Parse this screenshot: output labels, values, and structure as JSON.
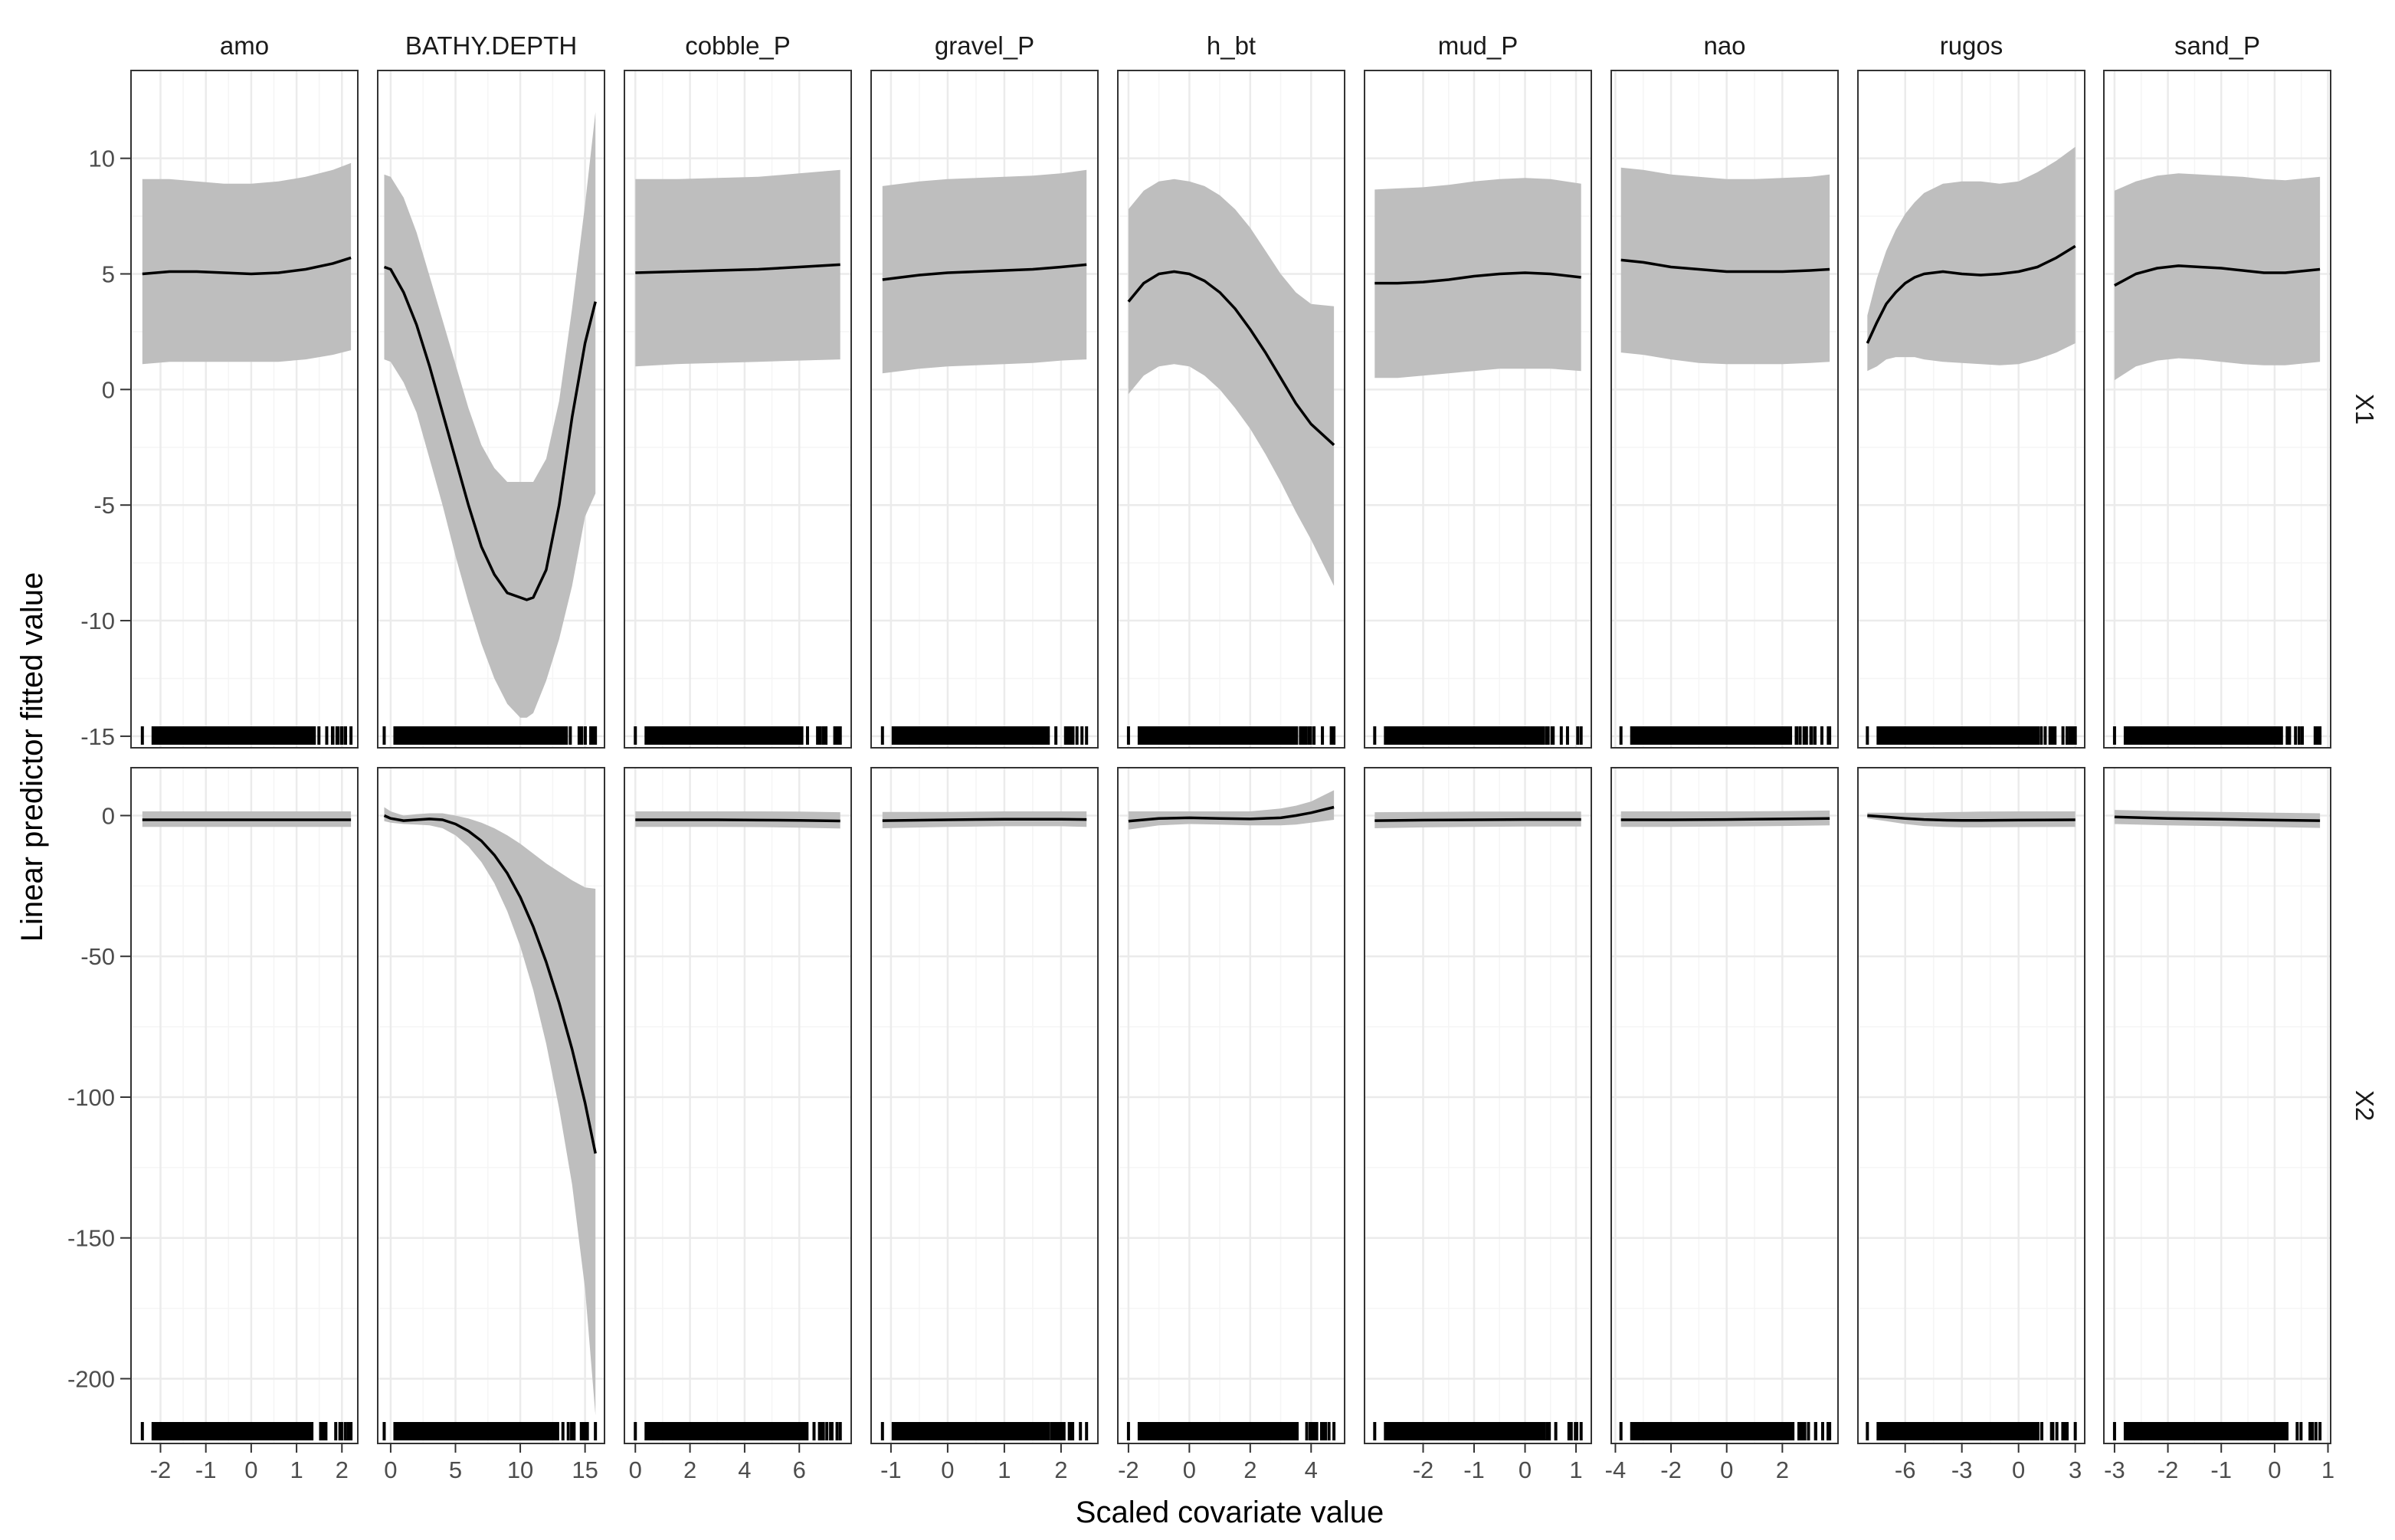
{
  "chart_data": {
    "type": "line",
    "xlabel": "Scaled covariate value",
    "ylabel": "Linear predictor fitted value",
    "grid": true,
    "colors": {
      "ribbon": "#bebebe",
      "line": "#000000",
      "rug": "#000000",
      "grid_major": "#ebebeb",
      "grid_minor": "#f5f5f5",
      "frame": "#333333"
    },
    "columns": [
      {
        "name": "amo",
        "xlim": [
          -2.65,
          2.35
        ],
        "xticks": [
          -2,
          -1,
          0,
          1,
          2
        ],
        "xrange": [
          -2.4,
          2.2
        ]
      },
      {
        "name": "BATHY.DEPTH",
        "xlim": [
          -1,
          16.5
        ],
        "xticks": [
          0,
          5,
          10,
          15
        ],
        "xrange": [
          -0.5,
          15.8
        ]
      },
      {
        "name": "cobble_P",
        "xlim": [
          -0.4,
          7.9
        ],
        "xticks": [
          0,
          2,
          4,
          6
        ],
        "xrange": [
          0,
          7.5
        ]
      },
      {
        "name": "gravel_P",
        "xlim": [
          -1.35,
          2.65
        ],
        "xticks": [
          -1,
          0,
          1,
          2
        ],
        "xrange": [
          -1.15,
          2.45
        ]
      },
      {
        "name": "h_bt",
        "xlim": [
          -2.35,
          5.1
        ],
        "xticks": [
          -2,
          0,
          2,
          4
        ],
        "xrange": [
          -2.0,
          4.75
        ]
      },
      {
        "name": "mud_P",
        "xlim": [
          -3.15,
          1.3
        ],
        "xticks": [
          -2,
          -1,
          0,
          1
        ],
        "xrange": [
          -2.95,
          1.1
        ]
      },
      {
        "name": "nao",
        "xlim": [
          -4.15,
          4.0
        ],
        "xticks": [
          -4,
          -2,
          0,
          2
        ],
        "xrange": [
          -3.8,
          3.7
        ]
      },
      {
        "name": "rugos",
        "xlim": [
          -8.5,
          3.5
        ],
        "xticks": [
          -6,
          -3,
          0,
          3
        ],
        "xrange": [
          -8.0,
          3.0
        ]
      },
      {
        "name": "sand_P",
        "xlim": [
          -3.2,
          1.05
        ],
        "xticks": [
          -3,
          -2,
          -1,
          0,
          1
        ],
        "xrange": [
          -3.0,
          0.85
        ]
      }
    ],
    "rows": [
      {
        "name": "X1",
        "ylim": [
          -15.5,
          13.8
        ],
        "yticks": [
          10,
          5,
          0,
          -5,
          -10,
          -15
        ]
      },
      {
        "name": "X2",
        "ylim": [
          -223,
          17
        ],
        "yticks": [
          0,
          -50,
          -100,
          -150,
          -200
        ]
      }
    ],
    "panels": {
      "X1": {
        "amo": {
          "x": [
            -2.4,
            -1.8,
            -1.2,
            -0.6,
            0,
            0.6,
            1.2,
            1.8,
            2.2
          ],
          "fit": [
            5.0,
            5.1,
            5.1,
            5.05,
            5.0,
            5.05,
            5.2,
            5.45,
            5.7
          ],
          "lower": [
            1.1,
            1.2,
            1.2,
            1.2,
            1.2,
            1.2,
            1.3,
            1.5,
            1.7
          ],
          "upper": [
            9.1,
            9.1,
            9.0,
            8.9,
            8.9,
            9.0,
            9.2,
            9.5,
            9.8
          ]
        },
        "BATHY.DEPTH": {
          "x": [
            -0.5,
            0,
            1,
            2,
            3,
            4,
            5,
            6,
            7,
            8,
            9,
            10,
            10.5,
            11,
            12,
            13,
            14,
            15,
            15.8
          ],
          "fit": [
            5.3,
            5.2,
            4.2,
            2.8,
            1.0,
            -1.0,
            -3.0,
            -5.0,
            -6.8,
            -8.0,
            -8.8,
            -9.0,
            -9.1,
            -9.0,
            -7.8,
            -5.0,
            -1.2,
            2.0,
            3.8
          ],
          "lower": [
            1.3,
            1.2,
            0.3,
            -1.0,
            -3.0,
            -5.0,
            -7.2,
            -9.2,
            -11.0,
            -12.5,
            -13.6,
            -14.2,
            -14.2,
            -14.0,
            -12.6,
            -10.8,
            -8.5,
            -5.5,
            -4.5
          ],
          "upper": [
            9.3,
            9.2,
            8.3,
            6.8,
            4.9,
            3.0,
            1.1,
            -0.8,
            -2.4,
            -3.4,
            -4.0,
            -4.0,
            -4.0,
            -4.0,
            -3.0,
            -0.5,
            3.5,
            8.0,
            12.0
          ]
        },
        "cobble_P": {
          "x": [
            0,
            1.5,
            3,
            4.5,
            6,
            7.5
          ],
          "fit": [
            5.05,
            5.1,
            5.15,
            5.2,
            5.3,
            5.4
          ],
          "lower": [
            1.0,
            1.1,
            1.15,
            1.2,
            1.25,
            1.3
          ],
          "upper": [
            9.1,
            9.1,
            9.15,
            9.2,
            9.35,
            9.5
          ]
        },
        "gravel_P": {
          "x": [
            -1.15,
            -0.5,
            0,
            0.5,
            1,
            1.5,
            2,
            2.45
          ],
          "fit": [
            4.75,
            4.95,
            5.05,
            5.1,
            5.15,
            5.2,
            5.3,
            5.4
          ],
          "lower": [
            0.7,
            0.9,
            1.0,
            1.05,
            1.1,
            1.15,
            1.25,
            1.3
          ],
          "upper": [
            8.8,
            9.0,
            9.1,
            9.15,
            9.2,
            9.25,
            9.35,
            9.5
          ]
        },
        "h_bt": {
          "x": [
            -2.0,
            -1.5,
            -1.0,
            -0.5,
            0,
            0.5,
            1,
            1.5,
            2,
            2.5,
            3,
            3.5,
            4,
            4.75
          ],
          "fit": [
            3.8,
            4.6,
            5.0,
            5.1,
            5.0,
            4.7,
            4.2,
            3.5,
            2.6,
            1.6,
            0.5,
            -0.6,
            -1.5,
            -2.4
          ],
          "lower": [
            -0.2,
            0.6,
            1.0,
            1.1,
            1.0,
            0.6,
            0.0,
            -0.8,
            -1.7,
            -2.8,
            -4.0,
            -5.3,
            -6.5,
            -8.5
          ],
          "upper": [
            7.8,
            8.6,
            9.0,
            9.1,
            9.0,
            8.8,
            8.4,
            7.8,
            7.0,
            6.0,
            5.0,
            4.2,
            3.7,
            3.6
          ]
        },
        "mud_P": {
          "x": [
            -2.95,
            -2.5,
            -2.0,
            -1.5,
            -1.0,
            -0.5,
            0,
            0.5,
            1.1
          ],
          "fit": [
            4.6,
            4.6,
            4.65,
            4.75,
            4.9,
            5.0,
            5.05,
            5.0,
            4.85
          ],
          "lower": [
            0.5,
            0.5,
            0.6,
            0.7,
            0.8,
            0.9,
            0.9,
            0.9,
            0.8
          ],
          "upper": [
            8.65,
            8.7,
            8.75,
            8.85,
            9.0,
            9.1,
            9.15,
            9.1,
            8.9
          ]
        },
        "nao": {
          "x": [
            -3.8,
            -3,
            -2,
            -1,
            0,
            1,
            2,
            3,
            3.7
          ],
          "fit": [
            5.6,
            5.5,
            5.3,
            5.2,
            5.1,
            5.1,
            5.1,
            5.15,
            5.2
          ],
          "lower": [
            1.6,
            1.5,
            1.3,
            1.15,
            1.1,
            1.1,
            1.1,
            1.15,
            1.2
          ],
          "upper": [
            9.6,
            9.5,
            9.3,
            9.2,
            9.1,
            9.1,
            9.15,
            9.2,
            9.3
          ]
        },
        "rugos": {
          "x": [
            -8.0,
            -7.5,
            -7.0,
            -6.5,
            -6.0,
            -5.5,
            -5.0,
            -4.0,
            -3.0,
            -2.0,
            -1.0,
            0,
            1.0,
            2.0,
            3.0
          ],
          "fit": [
            2.0,
            2.9,
            3.7,
            4.2,
            4.6,
            4.85,
            5.0,
            5.1,
            5.0,
            4.95,
            5.0,
            5.1,
            5.3,
            5.7,
            6.2
          ],
          "lower": [
            0.8,
            1.0,
            1.3,
            1.4,
            1.4,
            1.4,
            1.3,
            1.2,
            1.15,
            1.1,
            1.05,
            1.1,
            1.3,
            1.6,
            2.0
          ],
          "upper": [
            3.2,
            4.8,
            6.0,
            6.9,
            7.6,
            8.1,
            8.5,
            8.9,
            9.0,
            9.0,
            8.9,
            9.0,
            9.4,
            9.9,
            10.5
          ]
        },
        "sand_P": {
          "x": [
            -3.0,
            -2.6,
            -2.2,
            -1.8,
            -1.4,
            -1.0,
            -0.6,
            -0.2,
            0.2,
            0.85
          ],
          "fit": [
            4.5,
            5.0,
            5.25,
            5.35,
            5.3,
            5.25,
            5.15,
            5.05,
            5.05,
            5.2
          ],
          "lower": [
            0.4,
            1.0,
            1.25,
            1.35,
            1.3,
            1.2,
            1.1,
            1.05,
            1.05,
            1.2
          ],
          "upper": [
            8.6,
            9.0,
            9.25,
            9.35,
            9.3,
            9.25,
            9.2,
            9.1,
            9.05,
            9.2
          ]
        }
      },
      "X2": {
        "amo": {
          "x": [
            -2.4,
            -1.2,
            0,
            1.2,
            2.2
          ],
          "fit": [
            -1.5,
            -1.5,
            -1.5,
            -1.5,
            -1.5
          ],
          "lower": [
            -4.0,
            -4.0,
            -4.0,
            -4.0,
            -4.0
          ],
          "upper": [
            1.5,
            1.5,
            1.5,
            1.5,
            1.5
          ]
        },
        "BATHY.DEPTH": {
          "x": [
            -0.5,
            0,
            1,
            2,
            3,
            4,
            5,
            6,
            7,
            8,
            9,
            10,
            11,
            12,
            13,
            14,
            15,
            15.8
          ],
          "fit": [
            0.0,
            -1.0,
            -1.8,
            -1.5,
            -1.2,
            -1.5,
            -3.0,
            -5.5,
            -9.0,
            -14.0,
            -20.5,
            -29.0,
            -39.5,
            -52.0,
            -66.5,
            -83.0,
            -102.0,
            -120.0
          ],
          "lower": [
            -2.0,
            -2.5,
            -3.0,
            -3.2,
            -3.5,
            -4.5,
            -7.0,
            -11.0,
            -16.5,
            -24.0,
            -34.0,
            -46.5,
            -62.0,
            -81.0,
            -104.0,
            -131.0,
            -168.0,
            -213.0
          ],
          "upper": [
            3.0,
            1.5,
            0.0,
            0.5,
            0.8,
            0.8,
            0.0,
            -1.0,
            -2.5,
            -4.5,
            -7.0,
            -10.0,
            -13.5,
            -17.0,
            -20.0,
            -23.0,
            -25.5,
            -26.0
          ]
        },
        "cobble_P": {
          "x": [
            0,
            1.5,
            3,
            4.5,
            6,
            7.5
          ],
          "fit": [
            -1.5,
            -1.5,
            -1.5,
            -1.6,
            -1.7,
            -1.9
          ],
          "lower": [
            -4.0,
            -4.0,
            -4.0,
            -4.1,
            -4.3,
            -4.6
          ],
          "upper": [
            1.5,
            1.5,
            1.5,
            1.5,
            1.4,
            1.2
          ]
        },
        "gravel_P": {
          "x": [
            -1.15,
            0,
            1,
            2,
            2.45
          ],
          "fit": [
            -1.8,
            -1.5,
            -1.3,
            -1.3,
            -1.4
          ],
          "lower": [
            -4.5,
            -4.0,
            -3.8,
            -3.8,
            -4.0
          ],
          "upper": [
            1.3,
            1.3,
            1.5,
            1.5,
            1.5
          ]
        },
        "h_bt": {
          "x": [
            -2.0,
            -1.0,
            0,
            1,
            2,
            3,
            3.5,
            4,
            4.75
          ],
          "fit": [
            -2.0,
            -1.0,
            -0.8,
            -1.0,
            -1.2,
            -0.8,
            0.0,
            1.0,
            3.0
          ],
          "lower": [
            -5.0,
            -3.5,
            -3.0,
            -3.2,
            -3.5,
            -3.5,
            -3.2,
            -2.5,
            -1.5
          ],
          "upper": [
            1.5,
            1.5,
            1.5,
            1.5,
            1.5,
            2.5,
            3.5,
            5.0,
            9.0
          ]
        },
        "mud_P": {
          "x": [
            -2.95,
            -2,
            -1,
            0,
            1.1
          ],
          "fit": [
            -1.8,
            -1.6,
            -1.5,
            -1.4,
            -1.4
          ],
          "lower": [
            -4.5,
            -4.2,
            -4.0,
            -3.9,
            -3.9
          ],
          "upper": [
            1.2,
            1.3,
            1.4,
            1.4,
            1.4
          ]
        },
        "nao": {
          "x": [
            -3.8,
            -2,
            0,
            2,
            3.7
          ],
          "fit": [
            -1.5,
            -1.5,
            -1.4,
            -1.2,
            -1.0
          ],
          "lower": [
            -4.0,
            -4.0,
            -3.9,
            -3.7,
            -3.5
          ],
          "upper": [
            1.5,
            1.5,
            1.5,
            1.6,
            1.8
          ]
        },
        "rugos": {
          "x": [
            -8.0,
            -7.0,
            -6.0,
            -5.0,
            -4.0,
            -3.0,
            -2.0,
            0,
            3.0
          ],
          "fit": [
            0.0,
            -0.5,
            -1.0,
            -1.4,
            -1.6,
            -1.7,
            -1.7,
            -1.6,
            -1.5
          ],
          "lower": [
            -1.0,
            -2.0,
            -3.0,
            -3.7,
            -4.0,
            -4.2,
            -4.2,
            -4.1,
            -4.0
          ],
          "upper": [
            1.0,
            1.0,
            1.0,
            1.0,
            1.2,
            1.3,
            1.4,
            1.5,
            1.5
          ]
        },
        "sand_P": {
          "x": [
            -3.0,
            -2.0,
            -1.0,
            0,
            0.85
          ],
          "fit": [
            -0.5,
            -1.0,
            -1.3,
            -1.6,
            -1.8
          ],
          "lower": [
            -3.0,
            -3.5,
            -3.8,
            -4.1,
            -4.4
          ],
          "upper": [
            2.0,
            1.6,
            1.3,
            1.0,
            0.8
          ]
        }
      }
    }
  }
}
